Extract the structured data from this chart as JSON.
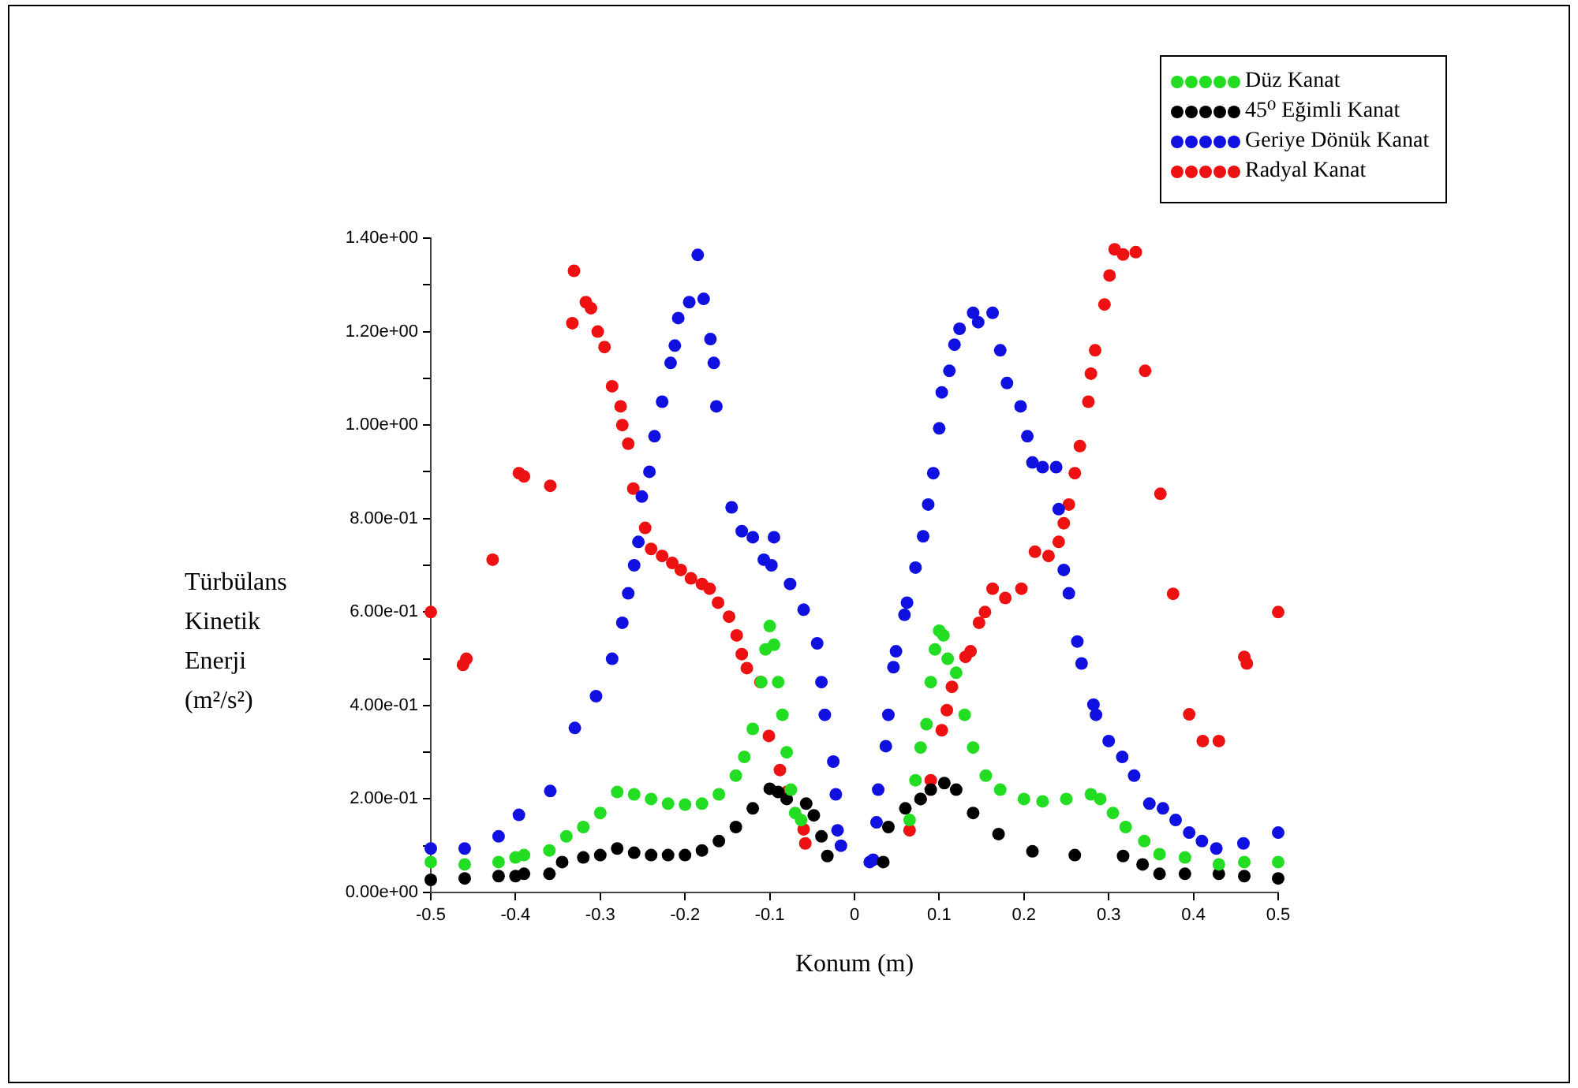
{
  "chart_data": {
    "type": "scatter",
    "xlabel": "Konum (m)",
    "ylabel": "Türbülans Kinetik Enerji (m²/s²)",
    "xlim": [
      -0.5,
      0.5
    ],
    "ylim": [
      0,
      1.4
    ],
    "xticks": [
      -0.5,
      -0.4,
      -0.3,
      -0.2,
      -0.1,
      0,
      0.1,
      0.2,
      0.3,
      0.4,
      0.5
    ],
    "yticks": [
      {
        "value": 0,
        "label": "0.00e+00"
      },
      {
        "value": 0.1,
        "label": null
      },
      {
        "value": 0.2,
        "label": "2.00e-01"
      },
      {
        "value": 0.3,
        "label": null
      },
      {
        "value": 0.4,
        "label": "4.00e-01"
      },
      {
        "value": 0.5,
        "label": null
      },
      {
        "value": 0.6,
        "label": "6.00e-01"
      },
      {
        "value": 0.7,
        "label": null
      },
      {
        "value": 0.8,
        "label": "8.00e-01"
      },
      {
        "value": 0.9,
        "label": null
      },
      {
        "value": 1.0,
        "label": "1.00e+00"
      },
      {
        "value": 1.1,
        "label": null
      },
      {
        "value": 1.2,
        "label": "1.20e+00"
      },
      {
        "value": 1.3,
        "label": null
      },
      {
        "value": 1.4,
        "label": "1.40e+00"
      }
    ],
    "grid": false,
    "legend": "top right",
    "marker": "circle",
    "series": [
      {
        "name": "Düz Kanat",
        "color": "#22dd22",
        "x": [
          -0.5,
          -0.46,
          -0.42,
          -0.4,
          -0.39,
          -0.36,
          -0.34,
          -0.32,
          -0.3,
          -0.28,
          -0.26,
          -0.24,
          -0.22,
          -0.2,
          -0.18,
          -0.16,
          -0.14,
          -0.13,
          -0.12,
          -0.11,
          -0.105,
          -0.1,
          -0.095,
          -0.09,
          -0.085,
          -0.08,
          -0.075,
          -0.07,
          -0.063,
          0.065,
          0.072,
          0.078,
          0.085,
          0.09,
          0.095,
          0.1,
          0.105,
          0.11,
          0.12,
          0.13,
          0.14,
          0.155,
          0.172,
          0.2,
          0.222,
          0.25,
          0.279,
          0.29,
          0.305,
          0.32,
          0.342,
          0.36,
          0.39,
          0.43,
          0.46,
          0.5
        ],
        "values": [
          0.065,
          0.06,
          0.065,
          0.075,
          0.08,
          0.09,
          0.12,
          0.14,
          0.17,
          0.215,
          0.21,
          0.2,
          0.19,
          0.188,
          0.19,
          0.21,
          0.25,
          0.29,
          0.35,
          0.45,
          0.52,
          0.57,
          0.53,
          0.45,
          0.38,
          0.3,
          0.22,
          0.17,
          0.155,
          0.155,
          0.24,
          0.31,
          0.36,
          0.45,
          0.52,
          0.56,
          0.55,
          0.5,
          0.47,
          0.38,
          0.31,
          0.25,
          0.22,
          0.2,
          0.195,
          0.2,
          0.21,
          0.2,
          0.17,
          0.14,
          0.11,
          0.082,
          0.075,
          0.06,
          0.065,
          0.065
        ]
      },
      {
        "name": "45⁰ Eğimli Kanat",
        "color": "#000000",
        "x": [
          -0.5,
          -0.46,
          -0.42,
          -0.4,
          -0.39,
          -0.36,
          -0.345,
          -0.32,
          -0.3,
          -0.28,
          -0.26,
          -0.24,
          -0.22,
          -0.2,
          -0.18,
          -0.16,
          -0.14,
          -0.12,
          -0.1,
          -0.09,
          -0.08,
          -0.057,
          -0.048,
          -0.039,
          -0.032,
          0.034,
          0.04,
          0.06,
          0.078,
          0.09,
          0.106,
          0.12,
          0.14,
          0.17,
          0.21,
          0.26,
          0.317,
          0.34,
          0.36,
          0.39,
          0.43,
          0.46,
          0.5
        ],
        "values": [
          0.027,
          0.03,
          0.035,
          0.035,
          0.04,
          0.04,
          0.065,
          0.075,
          0.08,
          0.094,
          0.085,
          0.08,
          0.08,
          0.08,
          0.09,
          0.11,
          0.14,
          0.18,
          0.222,
          0.215,
          0.2,
          0.19,
          0.165,
          0.12,
          0.078,
          0.065,
          0.14,
          0.18,
          0.2,
          0.22,
          0.234,
          0.22,
          0.17,
          0.125,
          0.088,
          0.08,
          0.078,
          0.06,
          0.04,
          0.04,
          0.04,
          0.035,
          0.03
        ]
      },
      {
        "name": "Geriye Dönük Kanat",
        "color": "#1010e0",
        "x": [
          -0.5,
          -0.46,
          -0.42,
          -0.396,
          -0.359,
          -0.33,
          -0.305,
          -0.286,
          -0.274,
          -0.267,
          -0.26,
          -0.255,
          -0.251,
          -0.242,
          -0.236,
          -0.227,
          -0.217,
          -0.212,
          -0.208,
          -0.195,
          -0.185,
          -0.178,
          -0.17,
          -0.166,
          -0.163,
          -0.145,
          -0.133,
          -0.12,
          -0.107,
          -0.098,
          -0.095,
          -0.076,
          -0.06,
          -0.044,
          -0.039,
          -0.035,
          -0.025,
          -0.022,
          -0.02,
          -0.016,
          0.018,
          0.022,
          0.026,
          0.028,
          0.037,
          0.04,
          0.046,
          0.049,
          0.059,
          0.062,
          0.072,
          0.081,
          0.087,
          0.093,
          0.1,
          0.103,
          0.112,
          0.118,
          0.124,
          0.14,
          0.146,
          0.163,
          0.172,
          0.18,
          0.196,
          0.204,
          0.21,
          0.222,
          0.238,
          0.241,
          0.247,
          0.253,
          0.263,
          0.268,
          0.282,
          0.285,
          0.3,
          0.316,
          0.33,
          0.348,
          0.364,
          0.379,
          0.395,
          0.41,
          0.427,
          0.459,
          0.5
        ],
        "values": [
          0.094,
          0.094,
          0.12,
          0.166,
          0.217,
          0.352,
          0.42,
          0.5,
          0.577,
          0.64,
          0.7,
          0.75,
          0.847,
          0.9,
          0.976,
          1.05,
          1.133,
          1.17,
          1.229,
          1.263,
          1.364,
          1.27,
          1.184,
          1.133,
          1.04,
          0.824,
          0.773,
          0.76,
          0.712,
          0.7,
          0.76,
          0.66,
          0.605,
          0.533,
          0.45,
          0.38,
          0.28,
          0.21,
          0.133,
          0.1,
          0.065,
          0.07,
          0.15,
          0.22,
          0.313,
          0.38,
          0.482,
          0.516,
          0.594,
          0.62,
          0.695,
          0.762,
          0.83,
          0.897,
          0.993,
          1.07,
          1.116,
          1.172,
          1.206,
          1.24,
          1.22,
          1.24,
          1.16,
          1.09,
          1.04,
          0.976,
          0.92,
          0.91,
          0.91,
          0.82,
          0.69,
          0.64,
          0.537,
          0.49,
          0.402,
          0.38,
          0.324,
          0.29,
          0.25,
          0.19,
          0.18,
          0.155,
          0.128,
          0.11,
          0.094,
          0.105,
          0.128
        ]
      },
      {
        "name": "Radyal Kanat",
        "color": "#ee1111",
        "x": [
          -0.5,
          -0.462,
          -0.458,
          -0.427,
          -0.396,
          -0.39,
          -0.359,
          -0.333,
          -0.331,
          -0.317,
          -0.311,
          -0.303,
          -0.295,
          -0.286,
          -0.276,
          -0.274,
          -0.267,
          -0.261,
          -0.247,
          -0.24,
          -0.227,
          -0.215,
          -0.205,
          -0.193,
          -0.18,
          -0.171,
          -0.161,
          -0.148,
          -0.139,
          -0.133,
          -0.127,
          -0.111,
          -0.101,
          -0.088,
          -0.08,
          -0.06,
          -0.058,
          0.065,
          0.078,
          0.09,
          0.103,
          0.109,
          0.115,
          0.131,
          0.137,
          0.147,
          0.154,
          0.163,
          0.178,
          0.197,
          0.213,
          0.229,
          0.241,
          0.247,
          0.253,
          0.26,
          0.266,
          0.276,
          0.279,
          0.284,
          0.295,
          0.301,
          0.307,
          0.317,
          0.332,
          0.343,
          0.361,
          0.376,
          0.395,
          0.411,
          0.43,
          0.46,
          0.463,
          0.5
        ],
        "values": [
          0.6,
          0.487,
          0.5,
          0.712,
          0.897,
          0.89,
          0.87,
          1.218,
          1.33,
          1.263,
          1.25,
          1.2,
          1.167,
          1.083,
          1.04,
          1.0,
          0.96,
          0.864,
          0.78,
          0.735,
          0.72,
          0.705,
          0.69,
          0.672,
          0.66,
          0.65,
          0.62,
          0.59,
          0.55,
          0.51,
          0.48,
          0.45,
          0.335,
          0.262,
          0.215,
          0.135,
          0.105,
          0.133,
          0.2,
          0.24,
          0.347,
          0.39,
          0.44,
          0.504,
          0.516,
          0.577,
          0.6,
          0.65,
          0.63,
          0.65,
          0.729,
          0.72,
          0.75,
          0.79,
          0.83,
          0.897,
          0.955,
          1.05,
          1.11,
          1.16,
          1.258,
          1.32,
          1.376,
          1.365,
          1.37,
          1.116,
          0.853,
          0.639,
          0.381,
          0.324,
          0.324,
          0.504,
          0.49,
          0.6
        ]
      }
    ]
  }
}
